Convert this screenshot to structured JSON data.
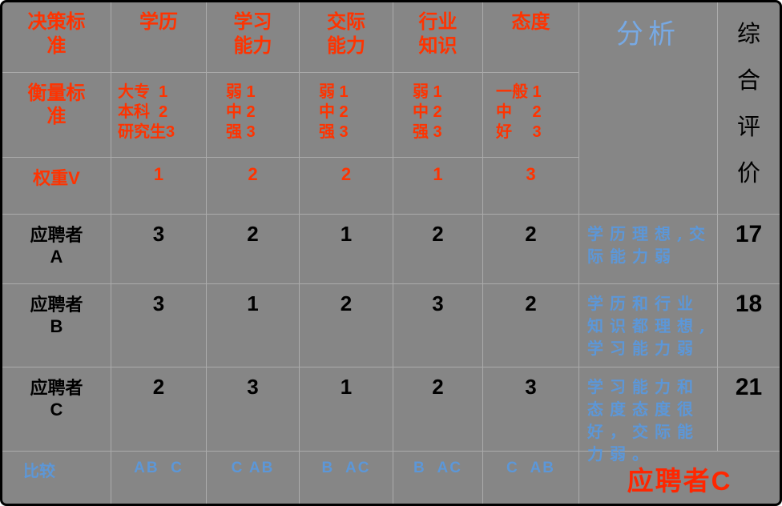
{
  "colors": {
    "background": "#868686",
    "grid_line": "#ABABAB",
    "red": "#FF3300",
    "blue": "#5C97D8",
    "light_blue": "#77A9E4",
    "result_red": "#FF2600",
    "black": "#000000"
  },
  "table": {
    "header": {
      "criteria_label": "决策标\n准",
      "columns": [
        "学历",
        "学习\n能力",
        "交际\n能力",
        "行业\n知识",
        "态度"
      ],
      "analysis_label": "分析",
      "overall_label": "综\n合\n评\n价"
    },
    "measure": {
      "label": "衡量标\n准",
      "values": [
        "大专  1\n本科  2\n研究生3",
        "弱 1\n中 2\n强 3",
        "弱 1\n中 2\n强 3",
        "弱 1\n中 2\n强 3",
        "一般 1\n中　 2\n好　 3"
      ]
    },
    "weights": {
      "label": "权重V",
      "values": [
        "1",
        "2",
        "2",
        "1",
        "3"
      ]
    },
    "candidates": [
      {
        "label": "应聘者\nA",
        "scores": [
          "3",
          "2",
          "1",
          "2",
          "2"
        ],
        "analysis": "学历理想,交际能力弱",
        "total": "17"
      },
      {
        "label": "应聘者\nB",
        "scores": [
          "3",
          "1",
          "2",
          "3",
          "2"
        ],
        "analysis": "学历和行业知识都理想,学习能力弱",
        "total": "18"
      },
      {
        "label": "应聘者\nC",
        "scores": [
          "2",
          "3",
          "1",
          "2",
          "3"
        ],
        "analysis": "学习能力和态度态度很好，交际能力弱。",
        "total": "21"
      }
    ],
    "compare": {
      "label": "比较",
      "values": [
        "AB  C",
        "C AB",
        "B  AC",
        "B  AC",
        "C  AB"
      ],
      "result": "应聘者C"
    }
  }
}
